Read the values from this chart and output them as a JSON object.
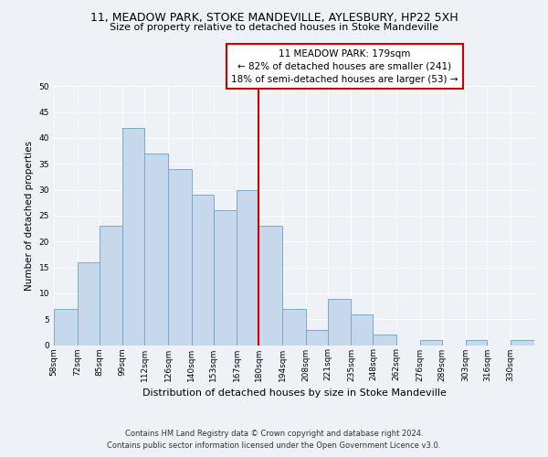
{
  "title1": "11, MEADOW PARK, STOKE MANDEVILLE, AYLESBURY, HP22 5XH",
  "title2": "Size of property relative to detached houses in Stoke Mandeville",
  "xlabel": "Distribution of detached houses by size in Stoke Mandeville",
  "ylabel": "Number of detached properties",
  "bin_edges": [
    58,
    72,
    85,
    99,
    112,
    126,
    140,
    153,
    167,
    180,
    194,
    208,
    221,
    235,
    248,
    262,
    276,
    289,
    303,
    316,
    330,
    344
  ],
  "bin_labels": [
    "58sqm",
    "72sqm",
    "85sqm",
    "99sqm",
    "112sqm",
    "126sqm",
    "140sqm",
    "153sqm",
    "167sqm",
    "180sqm",
    "194sqm",
    "208sqm",
    "221sqm",
    "235sqm",
    "248sqm",
    "262sqm",
    "276sqm",
    "289sqm",
    "303sqm",
    "316sqm",
    "330sqm"
  ],
  "counts": [
    7,
    16,
    23,
    42,
    37,
    34,
    29,
    26,
    30,
    23,
    7,
    3,
    9,
    6,
    2,
    0,
    1,
    0,
    1,
    0,
    1
  ],
  "bar_color": "#c8d8ec",
  "bar_edge_color": "#7aaac8",
  "reference_line_x": 180,
  "reference_line_color": "#cc0000",
  "annotation_title": "11 MEADOW PARK: 179sqm",
  "annotation_line1": "← 82% of detached houses are smaller (241)",
  "annotation_line2": "18% of semi-detached houses are larger (53) →",
  "annotation_box_color": "#ffffff",
  "annotation_box_edge": "#cc0000",
  "ylim": [
    0,
    50
  ],
  "yticks": [
    0,
    5,
    10,
    15,
    20,
    25,
    30,
    35,
    40,
    45,
    50
  ],
  "footer1": "Contains HM Land Registry data © Crown copyright and database right 2024.",
  "footer2": "Contains public sector information licensed under the Open Government Licence v3.0.",
  "bg_color": "#eef2f7",
  "grid_color": "#ffffff",
  "title1_fontsize": 9,
  "title2_fontsize": 8,
  "xlabel_fontsize": 8,
  "ylabel_fontsize": 7.5,
  "tick_fontsize": 6.5,
  "annotation_fontsize": 7.5,
  "footer_fontsize": 6
}
